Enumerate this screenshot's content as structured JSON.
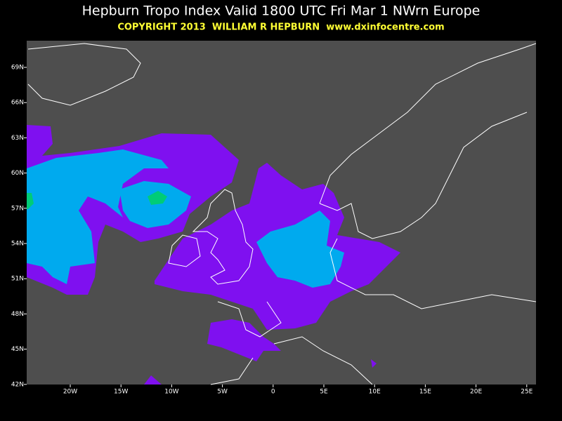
{
  "header": {
    "title": "Hepburn Tropo Index Valid 1800 UTC Fri Mar 1 NWrn Europe",
    "copyright": "COPYRIGHT 2013  WILLIAM R HEPBURN  www.dxinfocentre.com"
  },
  "map": {
    "lat_labels": [
      "69N",
      "66N",
      "63N",
      "60N",
      "57N",
      "54N",
      "51N",
      "48N",
      "45N",
      "42N"
    ],
    "lon_labels": [
      "20W",
      "15W",
      "10W",
      "5W",
      "0",
      "5E",
      "10E",
      "15E",
      "20E",
      "25E"
    ]
  }
}
